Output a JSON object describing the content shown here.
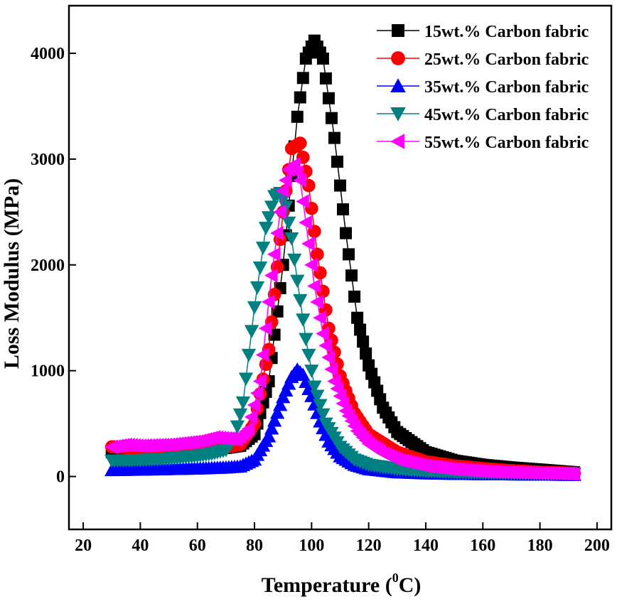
{
  "chart_data": {
    "type": "line",
    "title": "",
    "xlabel_main": "Temperature (",
    "xlabel_sup": "0",
    "xlabel_end": "C)",
    "ylabel": "Loss Modulus (MPa)",
    "xlim": [
      15,
      205
    ],
    "ylim": [
      -500,
      4450
    ],
    "xticks": [
      20,
      40,
      60,
      80,
      100,
      120,
      140,
      160,
      180,
      200
    ],
    "yticks": [
      0,
      1000,
      2000,
      3000,
      4000
    ],
    "legend_position": "top-right",
    "grid": false,
    "series": [
      {
        "name": "15wt.% Carbon fabric",
        "color": "#000000",
        "marker": "square",
        "x": [
          30,
          40,
          50,
          60,
          70,
          75,
          80,
          85,
          90,
          95,
          98,
          101,
          104,
          108,
          112,
          116,
          120,
          125,
          130,
          140,
          150,
          160,
          170,
          180,
          192
        ],
        "y": [
          230,
          235,
          240,
          255,
          270,
          290,
          400,
          900,
          2000,
          3400,
          3950,
          4120,
          3950,
          3200,
          2300,
          1500,
          1050,
          650,
          420,
          230,
          150,
          110,
          85,
          65,
          40
        ]
      },
      {
        "name": "25wt.% Carbon fabric",
        "color": "#ff0000",
        "marker": "circle",
        "x": [
          30,
          40,
          50,
          60,
          70,
          75,
          80,
          85,
          90,
          93,
          96,
          99,
          102,
          106,
          110,
          115,
          120,
          130,
          140,
          150,
          160,
          170,
          180,
          192
        ],
        "y": [
          280,
          270,
          265,
          270,
          280,
          300,
          500,
          1200,
          2500,
          3100,
          3150,
          2750,
          2100,
          1400,
          950,
          600,
          400,
          230,
          140,
          100,
          75,
          55,
          40,
          30
        ]
      },
      {
        "name": "35wt.% Carbon fabric",
        "color": "#0000ff",
        "marker": "triangle-up",
        "x": [
          30,
          40,
          50,
          60,
          70,
          75,
          80,
          85,
          90,
          93,
          95,
          97,
          100,
          103,
          106,
          110,
          115,
          120,
          130,
          140,
          150,
          160,
          170,
          180,
          192
        ],
        "y": [
          60,
          65,
          70,
          75,
          85,
          95,
          160,
          380,
          750,
          940,
          1010,
          960,
          760,
          520,
          330,
          190,
          110,
          70,
          40,
          30,
          25,
          22,
          20,
          18,
          15
        ]
      },
      {
        "name": "45wt.% Carbon fabric",
        "color": "#008080",
        "marker": "triangle-down",
        "x": [
          30,
          40,
          50,
          60,
          65,
          70,
          73,
          76,
          80,
          84,
          87,
          89,
          91,
          93,
          95,
          98,
          101,
          105,
          110,
          115,
          120,
          130,
          140,
          150,
          160,
          170,
          180,
          192
        ],
        "y": [
          150,
          155,
          170,
          195,
          215,
          250,
          360,
          700,
          1600,
          2350,
          2650,
          2680,
          2550,
          2250,
          1850,
          1300,
          850,
          500,
          280,
          160,
          110,
          70,
          50,
          40,
          35,
          30,
          28,
          25
        ]
      },
      {
        "name": "55wt.% Carbon fabric",
        "color": "#ff00ff",
        "marker": "triangle-left",
        "x": [
          30,
          35,
          40,
          50,
          60,
          66,
          70,
          74,
          78,
          82,
          86,
          90,
          92,
          94,
          96,
          98,
          101,
          104,
          108,
          112,
          116,
          120,
          125,
          130,
          140,
          150,
          160,
          170,
          180,
          192
        ],
        "y": [
          280,
          300,
          290,
          300,
          330,
          370,
          360,
          350,
          450,
          900,
          1900,
          2700,
          2900,
          2950,
          2800,
          2400,
          1800,
          1350,
          900,
          620,
          430,
          310,
          220,
          160,
          100,
          70,
          50,
          40,
          32,
          25
        ]
      }
    ]
  }
}
